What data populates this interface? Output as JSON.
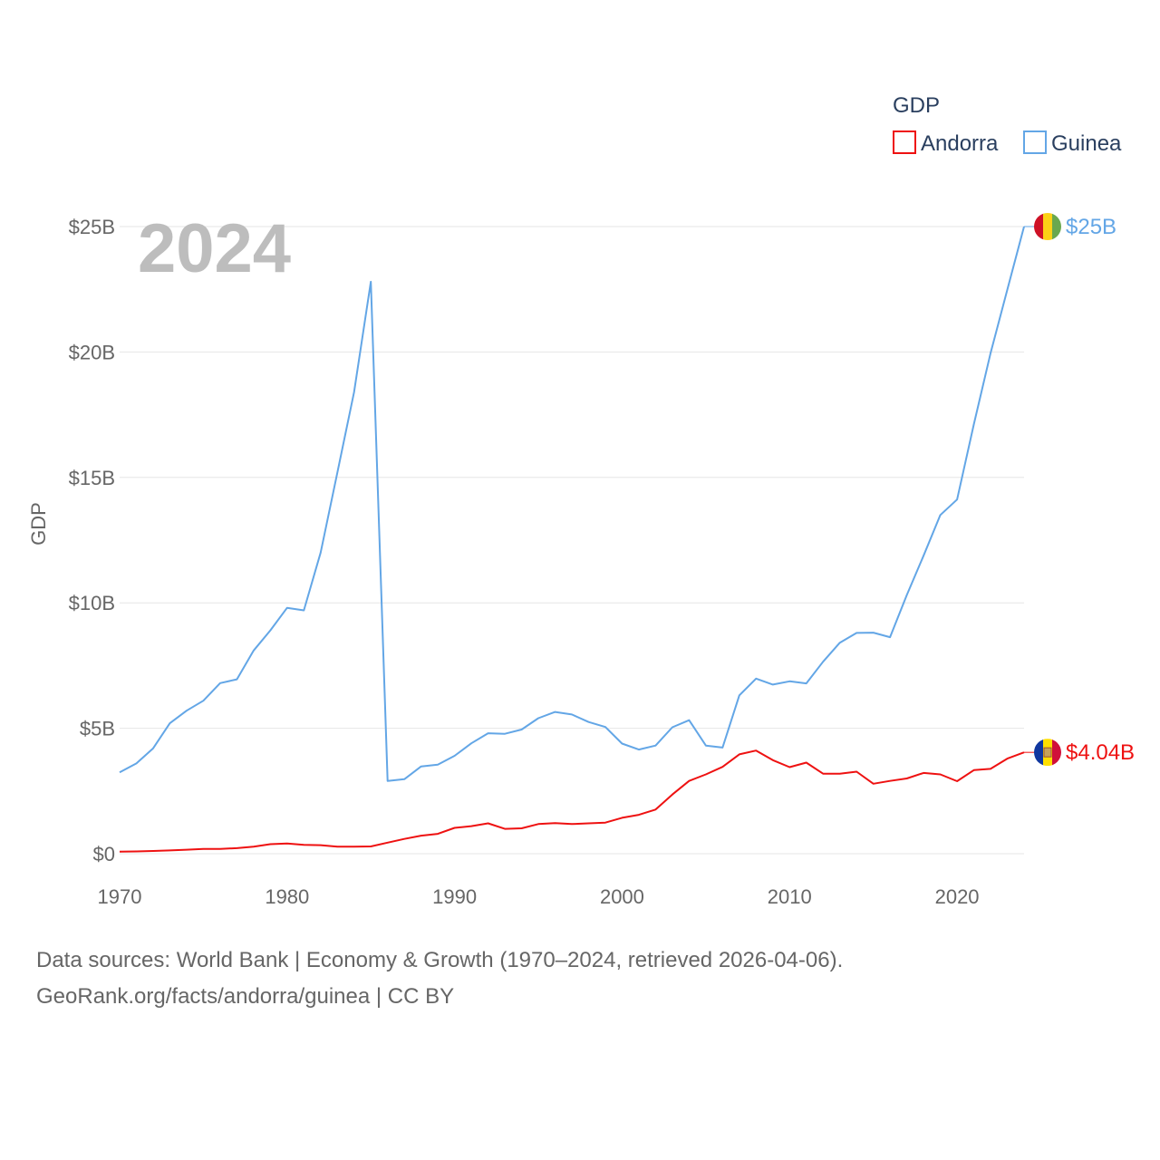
{
  "chart_data": {
    "type": "line",
    "title": "",
    "year_label": "2024",
    "xlabel": "",
    "ylabel": "GDP",
    "xlim": [
      1970,
      2024
    ],
    "ylim": [
      0,
      25
    ],
    "x_ticks": [
      {
        "value": 1970,
        "label": "1970"
      },
      {
        "value": 1980,
        "label": "1980"
      },
      {
        "value": 1990,
        "label": "1990"
      },
      {
        "value": 2000,
        "label": "2000"
      },
      {
        "value": 2010,
        "label": "2010"
      },
      {
        "value": 2020,
        "label": "2020"
      }
    ],
    "y_ticks": [
      {
        "value": 0,
        "label": "$0"
      },
      {
        "value": 5,
        "label": "$5B"
      },
      {
        "value": 10,
        "label": "$10B"
      },
      {
        "value": 15,
        "label": "$15B"
      },
      {
        "value": 20,
        "label": "$20B"
      },
      {
        "value": 25,
        "label": "$25B"
      }
    ],
    "legend": {
      "title": "GDP",
      "position": "top-right"
    },
    "x": [
      1970,
      1971,
      1972,
      1973,
      1974,
      1975,
      1976,
      1977,
      1978,
      1979,
      1980,
      1981,
      1982,
      1983,
      1984,
      1985,
      1986,
      1987,
      1988,
      1989,
      1990,
      1991,
      1992,
      1993,
      1994,
      1995,
      1996,
      1997,
      1998,
      1999,
      2000,
      2001,
      2002,
      2003,
      2004,
      2005,
      2006,
      2007,
      2008,
      2009,
      2010,
      2011,
      2012,
      2013,
      2014,
      2015,
      2016,
      2017,
      2018,
      2019,
      2020,
      2021,
      2022,
      2023,
      2024
    ],
    "series": [
      {
        "name": "Andorra",
        "color": "#ee1111",
        "flag": "andorra-flag",
        "end_label": "$4.04B",
        "values": [
          0.08,
          0.09,
          0.11,
          0.13,
          0.16,
          0.19,
          0.19,
          0.22,
          0.28,
          0.38,
          0.41,
          0.35,
          0.34,
          0.28,
          0.28,
          0.29,
          0.44,
          0.59,
          0.72,
          0.79,
          1.03,
          1.1,
          1.21,
          0.99,
          1.01,
          1.18,
          1.22,
          1.18,
          1.21,
          1.24,
          1.43,
          1.55,
          1.76,
          2.36,
          2.9,
          3.16,
          3.46,
          3.96,
          4.11,
          3.73,
          3.45,
          3.63,
          3.19,
          3.19,
          3.27,
          2.79,
          2.9,
          3.0,
          3.22,
          3.16,
          2.89,
          3.33,
          3.38,
          3.79,
          4.04
        ]
      },
      {
        "name": "Guinea",
        "color": "#63a6e6",
        "flag": "guinea-flag",
        "end_label": "$25B",
        "values": [
          3.24,
          3.6,
          4.2,
          5.2,
          5.7,
          6.1,
          6.8,
          6.95,
          8.1,
          8.9,
          9.8,
          9.7,
          12.0,
          15.2,
          18.4,
          22.8,
          2.9,
          2.97,
          3.48,
          3.55,
          3.9,
          4.4,
          4.8,
          4.78,
          4.95,
          5.4,
          5.65,
          5.55,
          5.25,
          5.05,
          4.39,
          4.15,
          4.31,
          5.04,
          5.32,
          4.31,
          4.23,
          6.31,
          6.98,
          6.74,
          6.87,
          6.79,
          7.65,
          8.41,
          8.8,
          8.81,
          8.63,
          10.31,
          11.88,
          13.5,
          14.12,
          17.12,
          19.95,
          22.48,
          25.0
        ]
      }
    ]
  },
  "footer": {
    "line1": "Data sources: World Bank | Economy & Growth (1970–2024, retrieved 2026-04-06).",
    "line2": "GeoRank.org/facts/andorra/guinea | CC BY"
  }
}
